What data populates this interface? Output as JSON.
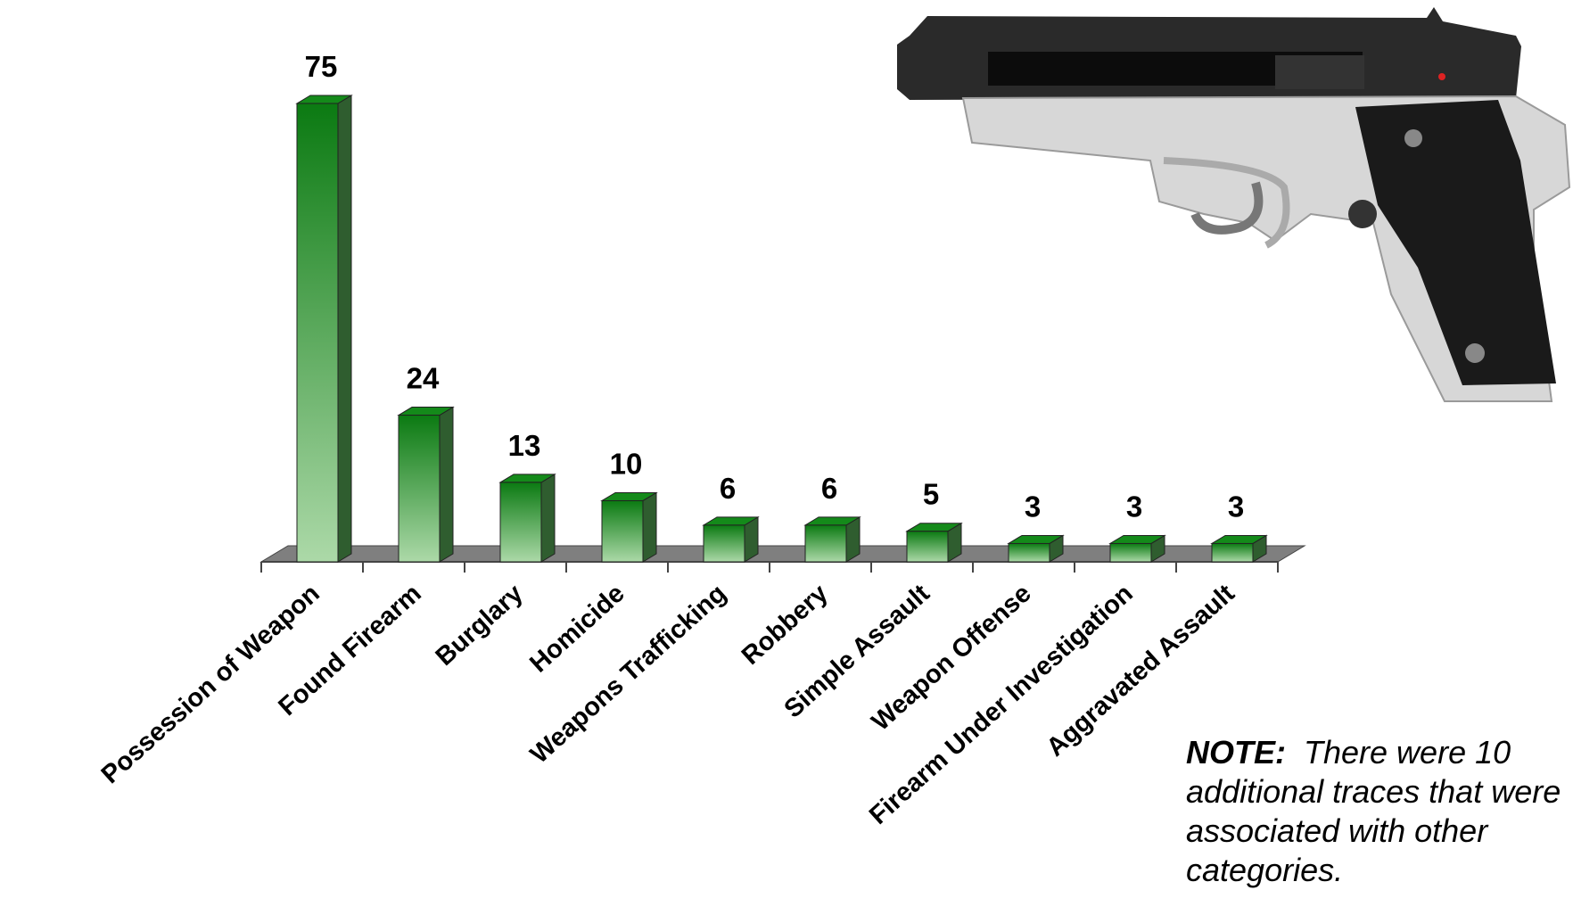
{
  "chart_data": {
    "type": "bar3d",
    "categories": [
      "Possession of Weapon",
      "Found Firearm",
      "Burglary",
      "Homicide",
      "Weapons Trafficking",
      "Robbery",
      "Simple Assault",
      "Weapon Offense",
      "Firearm Under Investigation",
      "Aggravated Assault"
    ],
    "values": [
      75,
      24,
      13,
      10,
      6,
      6,
      5,
      3,
      3,
      3
    ],
    "color": "#0b7a12",
    "note_label": "NOTE:",
    "note_text": "There were 10 additional traces that were associated with other categories."
  }
}
